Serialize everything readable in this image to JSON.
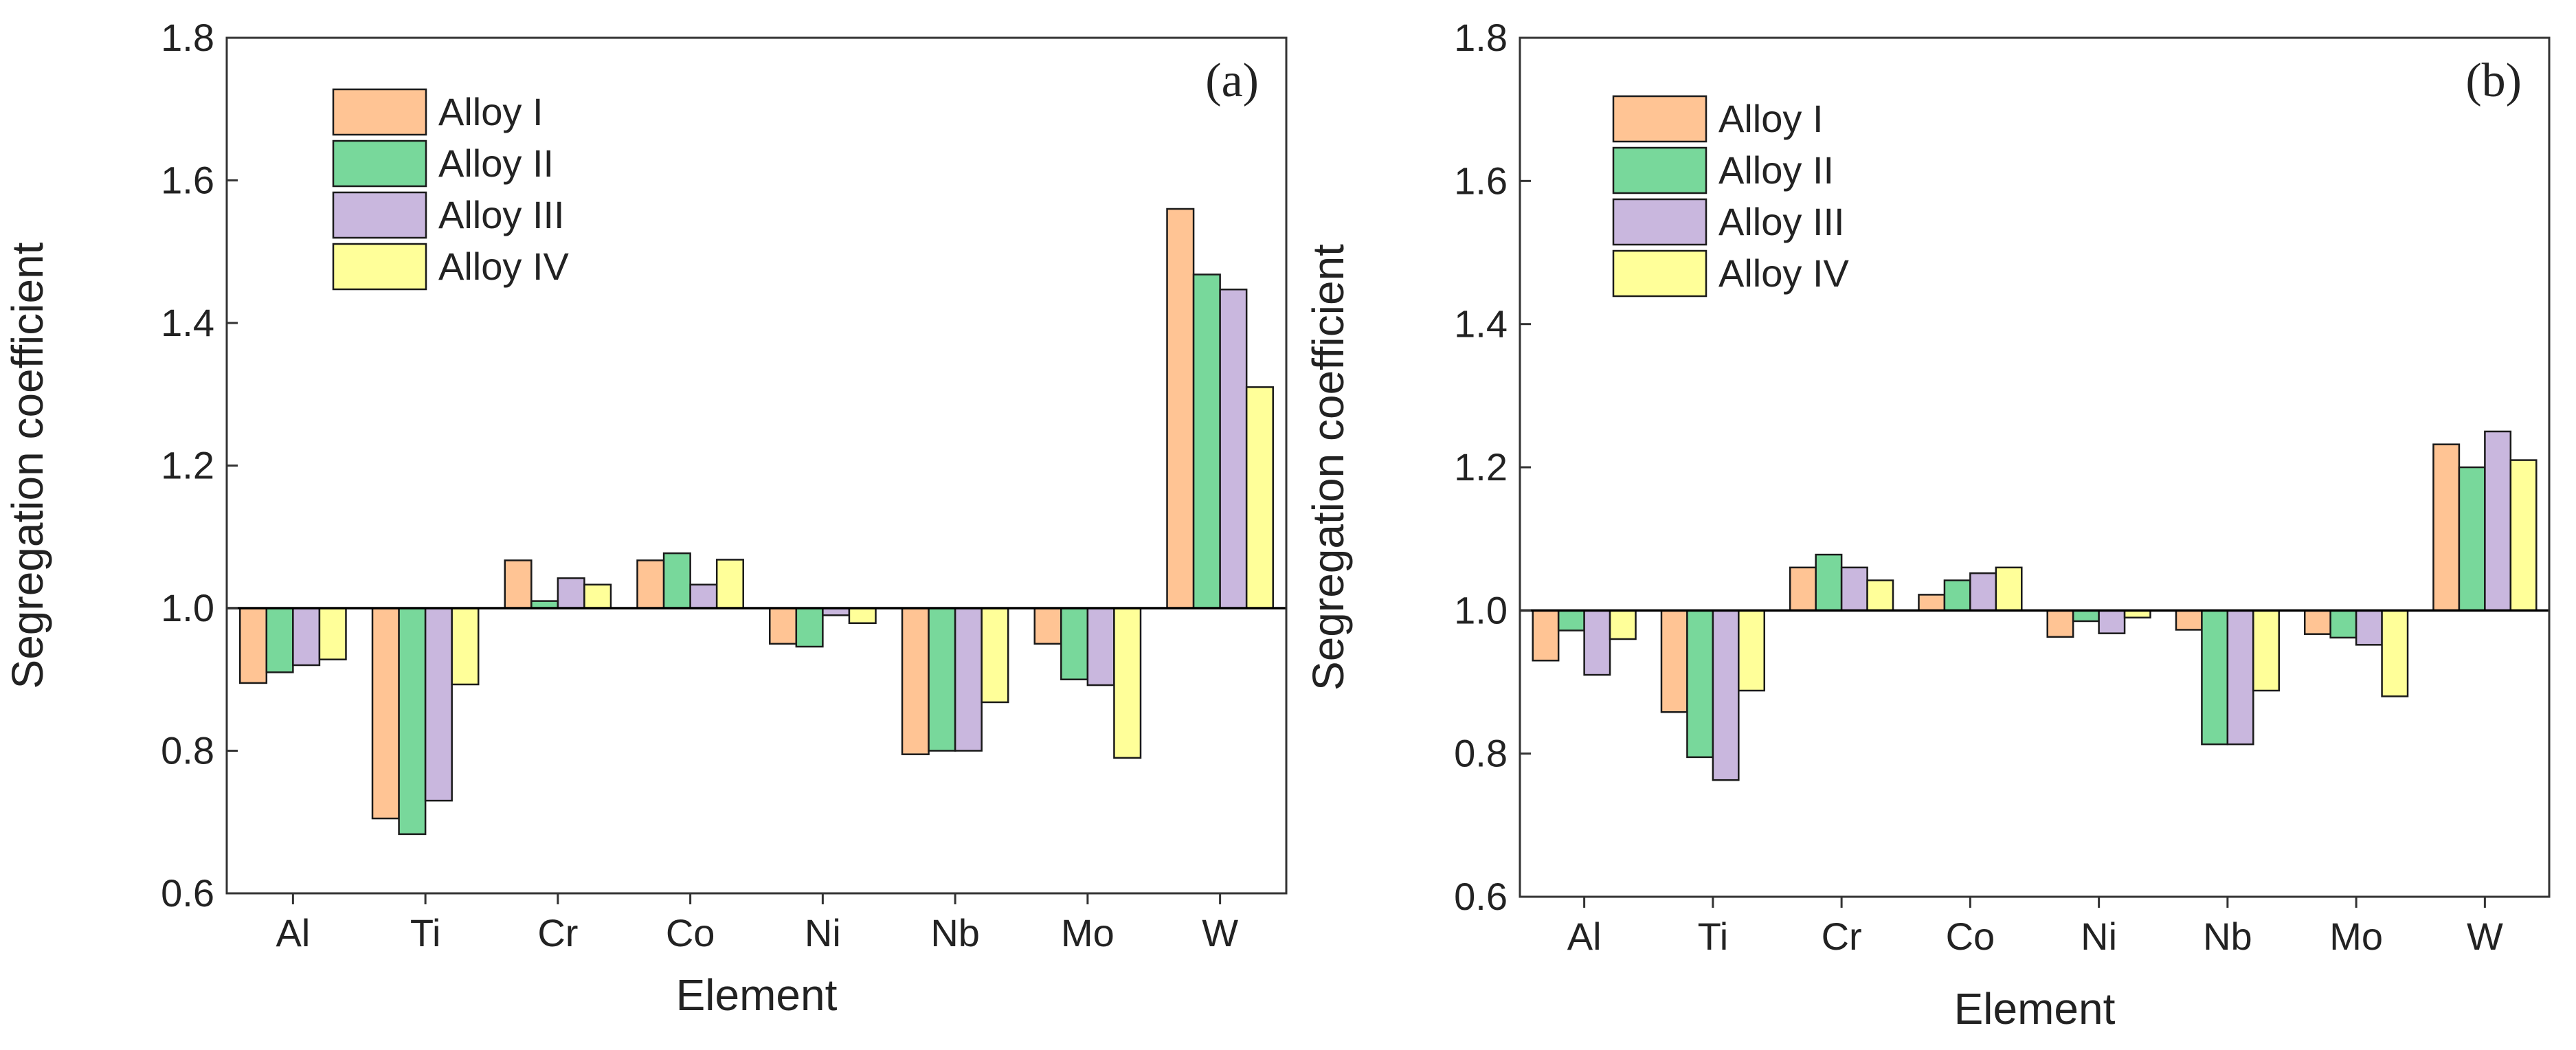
{
  "figure": {
    "panels": [
      "(a)",
      "(b)"
    ]
  },
  "colors": {
    "Alloy I": "#FFC494",
    "Alloy II": "#78D89B",
    "Alloy III": "#C9B7DE",
    "Alloy IV": "#FFFF99",
    "axis": "#333333"
  },
  "chart_data": [
    {
      "type": "bar",
      "panel_label": "(a)",
      "xlabel": "Element",
      "ylabel": "Segregation coefficient",
      "ylim": [
        0.6,
        1.8
      ],
      "yticks": [
        "0.6",
        "0.8",
        "1.0",
        "1.2",
        "1.4",
        "1.6",
        "1.8"
      ],
      "baseline": 1.0,
      "legend_position": "top-left",
      "categories": [
        "Al",
        "Ti",
        "Cr",
        "Co",
        "Ni",
        "Nb",
        "Mo",
        "W"
      ],
      "series": [
        {
          "name": "Alloy I",
          "values": [
            0.895,
            0.705,
            1.067,
            1.067,
            0.95,
            0.795,
            0.95,
            1.56
          ]
        },
        {
          "name": "Alloy II",
          "values": [
            0.91,
            0.683,
            1.01,
            1.077,
            0.946,
            0.8,
            0.9,
            1.468
          ]
        },
        {
          "name": "Alloy III",
          "values": [
            0.92,
            0.73,
            1.042,
            1.033,
            0.99,
            0.8,
            0.892,
            1.447
          ]
        },
        {
          "name": "Alloy IV",
          "values": [
            0.928,
            0.893,
            1.033,
            1.068,
            0.979,
            0.868,
            0.79,
            1.31
          ]
        }
      ]
    },
    {
      "type": "bar",
      "panel_label": "(b)",
      "xlabel": "Element",
      "ylabel": "Segregation coefficient",
      "ylim": [
        0.6,
        1.8
      ],
      "yticks": [
        "0.6",
        "0.8",
        "1.0",
        "1.2",
        "1.4",
        "1.6",
        "1.8"
      ],
      "baseline": 1.0,
      "legend_position": "top-left",
      "categories": [
        "Al",
        "Ti",
        "Cr",
        "Co",
        "Ni",
        "Nb",
        "Mo",
        "W"
      ],
      "series": [
        {
          "name": "Alloy I",
          "values": [
            0.93,
            0.858,
            1.06,
            1.022,
            0.963,
            0.973,
            0.967,
            1.232
          ]
        },
        {
          "name": "Alloy II",
          "values": [
            0.972,
            0.795,
            1.078,
            1.042,
            0.985,
            0.813,
            0.962,
            1.2
          ]
        },
        {
          "name": "Alloy III",
          "values": [
            0.91,
            0.763,
            1.06,
            1.052,
            0.968,
            0.813,
            0.952,
            1.25
          ]
        },
        {
          "name": "Alloy IV",
          "values": [
            0.96,
            0.888,
            1.042,
            1.06,
            0.99,
            0.888,
            0.88,
            1.21
          ]
        }
      ]
    }
  ]
}
